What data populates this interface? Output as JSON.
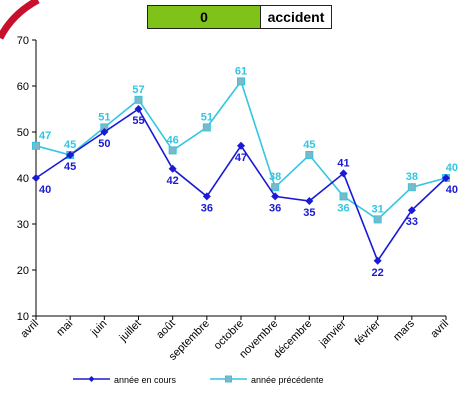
{
  "header": {
    "count": "0",
    "label": "accident"
  },
  "colors": {
    "current": "#1a1ad6",
    "previous": "#33c6e0",
    "badge": "#7fc21a",
    "corner": "#c8102e"
  },
  "chart_data": {
    "type": "line",
    "categories": [
      "avril",
      "mai",
      "juin",
      "juillet",
      "août",
      "septembre",
      "octobre",
      "novembre",
      "décembre",
      "janvier",
      "février",
      "mars",
      "avril"
    ],
    "series": [
      {
        "name": "année en cours",
        "values": [
          40,
          45,
          50,
          55,
          42,
          36,
          47,
          36,
          35,
          41,
          22,
          33,
          40
        ]
      },
      {
        "name": "année précédente",
        "values": [
          47,
          45,
          51,
          57,
          46,
          51,
          61,
          38,
          45,
          36,
          31,
          38,
          40
        ]
      }
    ],
    "ylim": [
      10,
      70
    ],
    "yticks": [
      "10",
      "20",
      "30",
      "40",
      "50",
      "60",
      "70"
    ],
    "grid": false,
    "legend": "bottom"
  }
}
